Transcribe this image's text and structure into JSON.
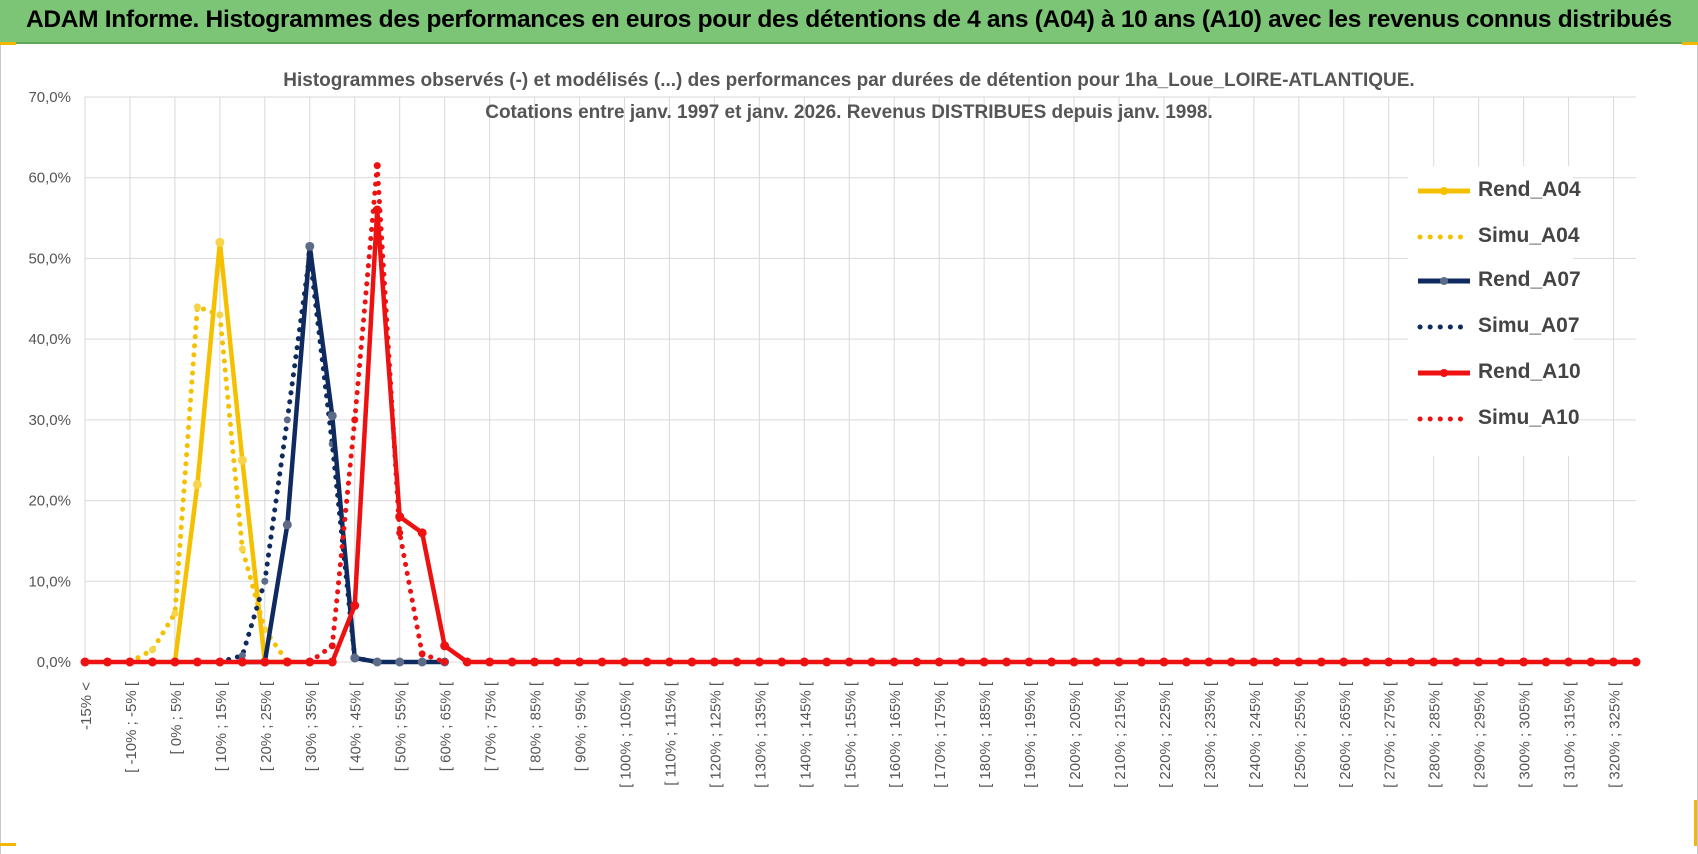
{
  "banner": {
    "title": "ADAM Informe. Histogrammes des performances en euros pour des détentions de 4 ans (A04) à 10 ans (A10) avec les revenus connus distribués"
  },
  "chart_data": {
    "type": "line",
    "title": "Histogrammes observés (-) et modélisés (...) des performances par durées de détention pour 1ha_Loue_LOIRE-ATLANTIQUE.",
    "subtitle": "Cotations entre janv. 1997 et janv. 2026. Revenus DISTRIBUES depuis janv. 1998.",
    "xlabel": "",
    "ylabel": "",
    "ylim": [
      0,
      0.7
    ],
    "y_ticks": [
      "0,0%",
      "10,0%",
      "20,0%",
      "30,0%",
      "40,0%",
      "50,0%",
      "60,0%",
      "70,0%"
    ],
    "grid": true,
    "legend_position": "right",
    "categories": [
      "-15% <",
      "[ -10% ; -5% [",
      "[ 0% ; 5% [",
      "[ 10% ; 15% [",
      "[ 20% ; 25% [",
      "[ 30% ; 35% [",
      "[ 40% ; 45% [",
      "[ 50% ; 55% [",
      "[ 60% ; 65% [",
      "[ 70% ; 75% [",
      "[ 80% ; 85% [",
      "[ 90% ; 95% [",
      "[ 100% ; 105% [",
      "[ 110% ; 115% [",
      "[ 120% ; 125% [",
      "[ 130% ; 135% [",
      "[ 140% ; 145% [",
      "[ 150% ; 155% [",
      "[ 160% ; 165% [",
      "[ 170% ; 175% [",
      "[ 180% ; 185% [",
      "[ 190% ; 195% [",
      "[ 200% ; 205% [",
      "[ 210% ; 215% [",
      "[ 220% ; 225% [",
      "[ 230% ; 235% [",
      "[ 240% ; 245% [",
      "[ 250% ; 255% [",
      "[ 260% ; 265% [",
      "[ 270% ; 275% [",
      "[ 280% ; 285% [",
      "[ 290% ; 295% [",
      "[ 300% ; 305% [",
      "[ 310% ; 315% [",
      "[ 320% ; 325% ["
    ],
    "x_points": 70,
    "series": [
      {
        "name": "Rend_A04",
        "color": "#f5c000",
        "style": "solid",
        "points": [
          [
            4,
            0
          ],
          [
            5,
            0.22
          ],
          [
            6,
            0.52
          ],
          [
            7,
            0.25
          ],
          [
            8,
            0
          ],
          [
            9,
            0
          ]
        ]
      },
      {
        "name": "Simu_A04",
        "color": "#f5c000",
        "style": "dotted",
        "points": [
          [
            2,
            0
          ],
          [
            3,
            0.015
          ],
          [
            4,
            0.06
          ],
          [
            5,
            0.44
          ],
          [
            6,
            0.43
          ],
          [
            7,
            0.14
          ],
          [
            8,
            0.04
          ],
          [
            9,
            0
          ]
        ]
      },
      {
        "name": "Rend_A07",
        "color": "#0e2a5e",
        "style": "solid",
        "points": [
          [
            7,
            0
          ],
          [
            8,
            0
          ],
          [
            9,
            0.17
          ],
          [
            10,
            0.515
          ],
          [
            11,
            0.305
          ],
          [
            12,
            0.005
          ],
          [
            13,
            0
          ],
          [
            14,
            0
          ],
          [
            15,
            0
          ],
          [
            16,
            0
          ]
        ]
      },
      {
        "name": "Simu_A07",
        "color": "#0e2a5e",
        "style": "dotted",
        "points": [
          [
            6,
            0
          ],
          [
            7,
            0.008
          ],
          [
            8,
            0.1
          ],
          [
            9,
            0.3
          ],
          [
            10,
            0.505
          ],
          [
            11,
            0.27
          ],
          [
            12,
            0.005
          ],
          [
            13,
            0
          ]
        ]
      },
      {
        "name": "Rend_A10",
        "color": "#ee1111",
        "style": "solid",
        "points": [
          [
            0,
            0
          ],
          [
            1,
            0
          ],
          [
            2,
            0
          ],
          [
            3,
            0
          ],
          [
            4,
            0
          ],
          [
            5,
            0
          ],
          [
            6,
            0
          ],
          [
            7,
            0
          ],
          [
            8,
            0
          ],
          [
            9,
            0
          ],
          [
            10,
            0
          ],
          [
            11,
            0
          ],
          [
            12,
            0.07
          ],
          [
            13,
            0.56
          ],
          [
            14,
            0.18
          ],
          [
            15,
            0.16
          ],
          [
            16,
            0.02
          ],
          [
            17,
            0
          ],
          [
            18,
            0
          ],
          [
            19,
            0
          ],
          [
            20,
            0
          ],
          [
            21,
            0
          ],
          [
            22,
            0
          ],
          [
            23,
            0
          ],
          [
            24,
            0
          ],
          [
            25,
            0
          ],
          [
            26,
            0
          ],
          [
            27,
            0
          ],
          [
            28,
            0
          ],
          [
            29,
            0
          ],
          [
            30,
            0
          ],
          [
            31,
            0
          ],
          [
            32,
            0
          ],
          [
            33,
            0
          ],
          [
            34,
            0
          ],
          [
            35,
            0
          ],
          [
            36,
            0
          ],
          [
            37,
            0
          ],
          [
            38,
            0
          ],
          [
            39,
            0
          ],
          [
            40,
            0
          ],
          [
            41,
            0
          ],
          [
            42,
            0
          ],
          [
            43,
            0
          ],
          [
            44,
            0
          ],
          [
            45,
            0
          ],
          [
            46,
            0
          ],
          [
            47,
            0
          ],
          [
            48,
            0
          ],
          [
            49,
            0
          ],
          [
            50,
            0
          ],
          [
            51,
            0
          ],
          [
            52,
            0
          ],
          [
            53,
            0
          ],
          [
            54,
            0
          ],
          [
            55,
            0
          ],
          [
            56,
            0
          ],
          [
            57,
            0
          ],
          [
            58,
            0
          ],
          [
            59,
            0
          ],
          [
            60,
            0
          ],
          [
            61,
            0
          ],
          [
            62,
            0
          ],
          [
            63,
            0
          ],
          [
            64,
            0
          ],
          [
            65,
            0
          ],
          [
            66,
            0
          ],
          [
            67,
            0
          ],
          [
            68,
            0
          ],
          [
            69,
            0
          ]
        ]
      },
      {
        "name": "Simu_A10",
        "color": "#ee1111",
        "style": "dotted",
        "points": [
          [
            10,
            0
          ],
          [
            11,
            0.02
          ],
          [
            12,
            0.3
          ],
          [
            13,
            0.615
          ],
          [
            14,
            0.16
          ],
          [
            15,
            0.01
          ],
          [
            16,
            0
          ]
        ]
      }
    ]
  }
}
